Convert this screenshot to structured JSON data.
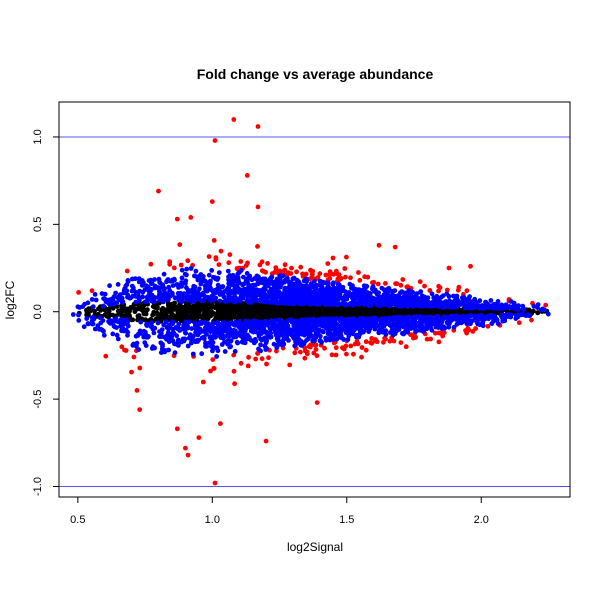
{
  "chart_data": {
    "type": "scatter",
    "title": "Fold change vs average abundance",
    "xlabel": "log2Signal",
    "ylabel": "log2FC",
    "xlim": [
      0.43,
      2.33
    ],
    "ylim": [
      -1.06,
      1.2
    ],
    "x_ticks": [
      0.5,
      1.0,
      1.5,
      2.0
    ],
    "x_tick_labels": [
      "0.5",
      "1.0",
      "1.5",
      "2.0"
    ],
    "y_ticks": [
      -1.0,
      -0.5,
      0.0,
      0.5,
      1.0
    ],
    "y_tick_labels": [
      "-1.0",
      "-0.5",
      "0.0",
      "0.5",
      "1.0"
    ],
    "grid": false,
    "legend": "none",
    "reference_lines": [
      {
        "axis": "y",
        "value": 1.0,
        "color": "#5555ff"
      },
      {
        "axis": "y",
        "value": -1.0,
        "color": "#5555ff"
      }
    ],
    "series_colors": {
      "baseline": "#000000",
      "moderate": "#0000ff",
      "significant": "#ff0000"
    },
    "outlier_points": [
      {
        "x": 1.08,
        "y": 1.1
      },
      {
        "x": 1.01,
        "y": 0.98
      },
      {
        "x": 1.17,
        "y": 1.06
      },
      {
        "x": 1.13,
        "y": 0.78
      },
      {
        "x": 1.0,
        "y": 0.63
      },
      {
        "x": 1.17,
        "y": 0.6
      },
      {
        "x": 0.8,
        "y": 0.69
      },
      {
        "x": 0.87,
        "y": 0.53
      },
      {
        "x": 0.92,
        "y": 0.54
      },
      {
        "x": 1.01,
        "y": -0.98
      },
      {
        "x": 0.91,
        "y": -0.82
      },
      {
        "x": 0.9,
        "y": -0.78
      },
      {
        "x": 0.95,
        "y": -0.72
      },
      {
        "x": 0.87,
        "y": -0.67
      },
      {
        "x": 1.03,
        "y": -0.64
      },
      {
        "x": 1.2,
        "y": -0.74
      },
      {
        "x": 0.73,
        "y": -0.56
      },
      {
        "x": 1.39,
        "y": -0.52
      },
      {
        "x": 1.62,
        "y": 0.38
      },
      {
        "x": 1.68,
        "y": 0.37
      },
      {
        "x": 1.88,
        "y": 0.25
      },
      {
        "x": 1.96,
        "y": 0.26
      },
      {
        "x": 0.72,
        "y": -0.45
      }
    ],
    "cloud": {
      "n_points": 4500,
      "x_range": [
        0.47,
        2.27
      ],
      "x_mode": 1.35,
      "spread": [
        {
          "x": 0.47,
          "sd": 0.03
        },
        {
          "x": 0.75,
          "sd": 0.12
        },
        {
          "x": 1.0,
          "sd": 0.13
        },
        {
          "x": 1.4,
          "sd": 0.09
        },
        {
          "x": 1.8,
          "sd": 0.06
        },
        {
          "x": 2.27,
          "sd": 0.015
        }
      ]
    }
  }
}
